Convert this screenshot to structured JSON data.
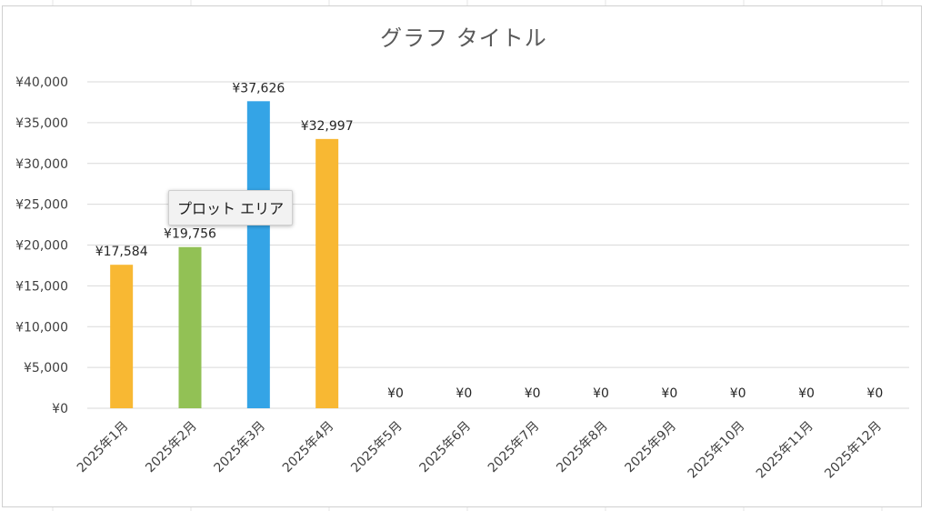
{
  "chart_data": {
    "type": "bar",
    "title": "グラフ タイトル",
    "categories": [
      "2025年1月",
      "2025年2月",
      "2025年3月",
      "2025年4月",
      "2025年5月",
      "2025年6月",
      "2025年7月",
      "2025年8月",
      "2025年9月",
      "2025年10月",
      "2025年11月",
      "2025年12月"
    ],
    "values": [
      17584,
      19756,
      37626,
      32997,
      0,
      0,
      0,
      0,
      0,
      0,
      0,
      0
    ],
    "data_labels": [
      "¥17,584",
      "¥19,756",
      "¥37,626",
      "¥32,997",
      "¥0",
      "¥0",
      "¥0",
      "¥0",
      "¥0",
      "¥0",
      "¥0",
      "¥0"
    ],
    "bar_colors": [
      "#F8B833",
      "#92C155",
      "#34A4E6",
      "#F8B833",
      "#F8B833",
      "#F8B833",
      "#F8B833",
      "#F8B833",
      "#F8B833",
      "#F8B833",
      "#F8B833",
      "#F8B833"
    ],
    "ylim": [
      0,
      40000
    ],
    "yticks": [
      0,
      5000,
      10000,
      15000,
      20000,
      25000,
      30000,
      35000,
      40000
    ],
    "ytick_labels": [
      "¥0",
      "¥5,000",
      "¥10,000",
      "¥15,000",
      "¥20,000",
      "¥25,000",
      "¥30,000",
      "¥35,000",
      "¥40,000"
    ],
    "xlabel": "",
    "ylabel": "",
    "grid": true,
    "legend": "none"
  },
  "tooltip": {
    "text": "プロット エリア"
  },
  "colors": {
    "gridline": "#d9d9d9",
    "axis_text": "#404040",
    "title": "#595959"
  }
}
